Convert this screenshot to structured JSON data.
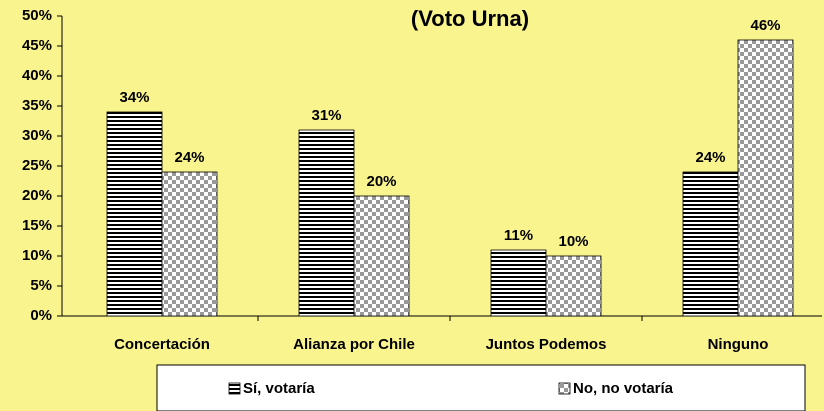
{
  "chart_data": {
    "type": "bar",
    "title": "(Voto Urna)",
    "categories": [
      "Concertación",
      "Alianza por Chile",
      "Juntos Podemos",
      "Ninguno"
    ],
    "series": [
      {
        "name": "Sí, votaría",
        "color": "#000000",
        "values": [
          34,
          31,
          11,
          24
        ],
        "value_labels": [
          "34%",
          "31%",
          "11%",
          "24%"
        ]
      },
      {
        "name": "No, no votaría",
        "color": "#999999",
        "values": [
          24,
          20,
          10,
          46
        ],
        "value_labels": [
          "24%",
          "20%",
          "10%",
          "46%"
        ]
      }
    ],
    "ylim": [
      0,
      50
    ],
    "yticks": [
      {
        "value": 0,
        "label": "0%"
      },
      {
        "value": 5,
        "label": "5%"
      },
      {
        "value": 10,
        "label": "10%"
      },
      {
        "value": 15,
        "label": "15%"
      },
      {
        "value": 20,
        "label": "20%"
      },
      {
        "value": 25,
        "label": "25%"
      },
      {
        "value": 30,
        "label": "30%"
      },
      {
        "value": 35,
        "label": "35%"
      },
      {
        "value": 40,
        "label": "40%"
      },
      {
        "value": 45,
        "label": "45%"
      },
      {
        "value": 50,
        "label": "50%"
      }
    ],
    "legend": "bottom"
  }
}
